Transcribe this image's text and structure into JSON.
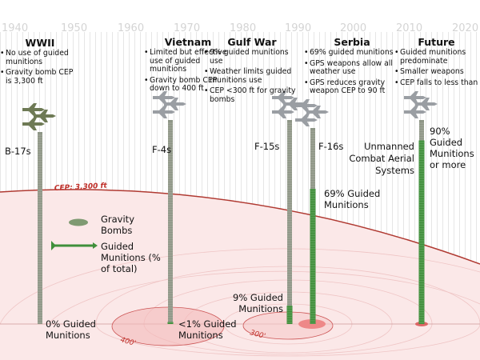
{
  "years": [
    "1940",
    "1950",
    "1960",
    "1970",
    "1980",
    "1990",
    "2000",
    "2010",
    "2020"
  ],
  "eras": [
    {
      "title": "WWII",
      "bullets": [
        "No use of guided munitions",
        "Gravity bomb CEP is 3,300 ft"
      ]
    },
    {
      "title": "Vietnam",
      "bullets": [
        "Limited but effective use of guided munitions",
        "Gravity bomb CEP down to 400 ft"
      ]
    },
    {
      "title": "Gulf War",
      "bullets": [
        "9% guided munitions use",
        "Weather limits guided munitions use",
        "CEP <300 ft for gravity bombs"
      ]
    },
    {
      "title": "Serbia",
      "bullets": [
        "69% guided munitions",
        "GPS weapons allow all weather use",
        "GPS reduces gravity weapon CEP to 90 ft"
      ]
    },
    {
      "title": "Future",
      "bullets": [
        "Guided munitions predominate",
        "Smaller weapons",
        "CEP falls to less than"
      ]
    }
  ],
  "aircraft": [
    "B-17s",
    "F-4s",
    "F-15s",
    "F-16s",
    "Unmanned Combat Aerial Systems"
  ],
  "guided_labels": [
    "0% Guided Munitions",
    "<1% Guided Munitions",
    "9% Guided Munitions",
    "69% Guided Munitions",
    "90% Guided Munitions or more"
  ],
  "guided_percent": {
    "wwii": 0,
    "vietnam": 1,
    "gulf_war": 9,
    "serbia": 69,
    "future": 90
  },
  "cep_labels": {
    "wwii": "CEP: 3,300 ft",
    "vietnam": "400'",
    "gulf_war": "300'"
  },
  "legend": {
    "gravity": "Gravity Bombs",
    "guided": "Guided Munitions (% of total)"
  },
  "colors": {
    "guided": "#3f8f3a",
    "gravity": "#8e9686",
    "cep": "#c0302a",
    "target": "#f7dede"
  }
}
